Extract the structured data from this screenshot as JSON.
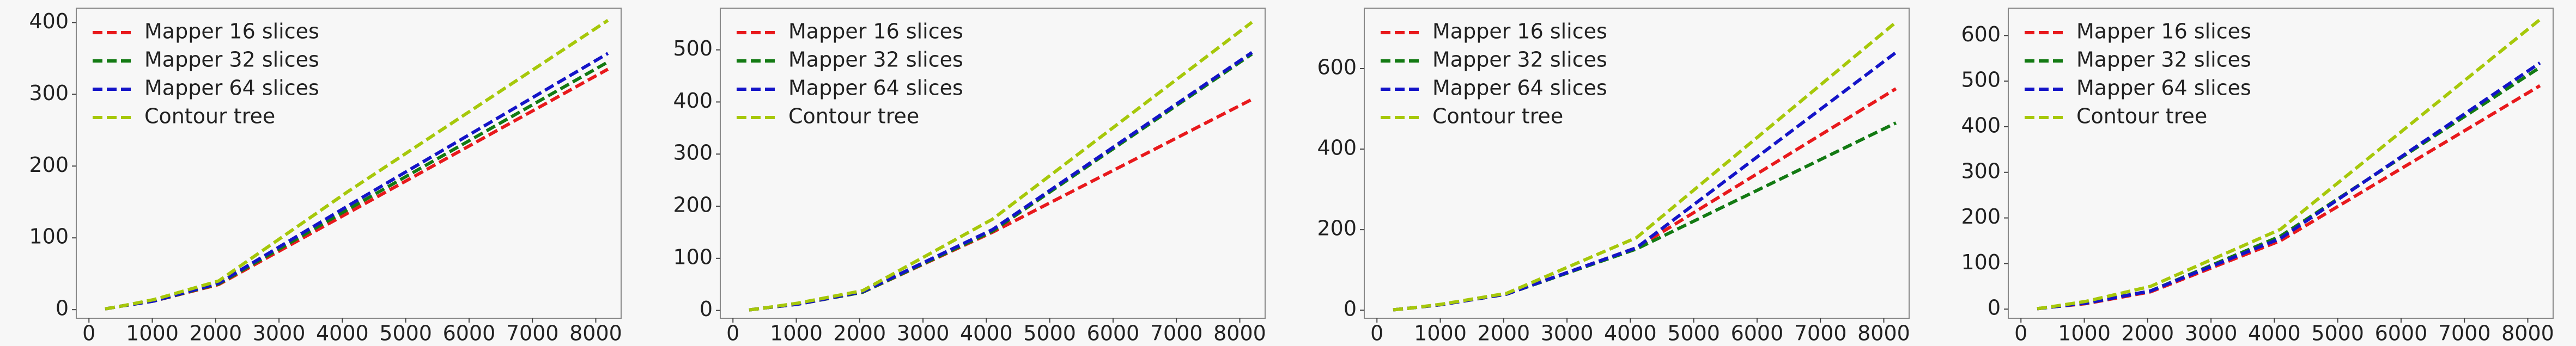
{
  "chart_data": [
    {
      "type": "line",
      "x": [
        256,
        512,
        1024,
        2048,
        4096,
        8192
      ],
      "series": [
        {
          "name": "Mapper 16 slices",
          "color": "#e8191c",
          "values": [
            1,
            5,
            12,
            35,
            135,
            335
          ]
        },
        {
          "name": "Mapper 32 slices",
          "color": "#137a13",
          "values": [
            1,
            5,
            12,
            36,
            140,
            345
          ]
        },
        {
          "name": "Mapper 64 slices",
          "color": "#1414c8",
          "values": [
            1,
            5,
            12,
            37,
            145,
            357
          ]
        },
        {
          "name": "Contour tree",
          "color": "#a6c80a",
          "values": [
            1,
            5,
            14,
            40,
            165,
            403
          ]
        }
      ],
      "xlim": [
        -200,
        8400
      ],
      "ylim": [
        -12,
        420
      ],
      "xticks": [
        0,
        1000,
        2000,
        3000,
        4000,
        5000,
        6000,
        7000,
        8000
      ],
      "yticks": [
        0,
        100,
        200,
        300,
        400
      ],
      "legend": "upper left"
    },
    {
      "type": "line",
      "x": [
        256,
        512,
        1024,
        2048,
        4096,
        8192
      ],
      "series": [
        {
          "name": "Mapper 16 slices",
          "color": "#e8191c",
          "values": [
            1,
            5,
            12,
            35,
            150,
            405
          ]
        },
        {
          "name": "Mapper 32 slices",
          "color": "#137a13",
          "values": [
            1,
            5,
            12,
            35,
            152,
            492
          ]
        },
        {
          "name": "Mapper 64 slices",
          "color": "#1414c8",
          "values": [
            1,
            5,
            12,
            36,
            155,
            495
          ]
        },
        {
          "name": "Contour tree",
          "color": "#a6c80a",
          "values": [
            1,
            5,
            14,
            38,
            175,
            553
          ]
        }
      ],
      "xlim": [
        -200,
        8400
      ],
      "ylim": [
        -15,
        580
      ],
      "xticks": [
        0,
        1000,
        2000,
        3000,
        4000,
        5000,
        6000,
        7000,
        8000
      ],
      "yticks": [
        0,
        100,
        200,
        300,
        400,
        500
      ],
      "legend": "upper left"
    },
    {
      "type": "line",
      "x": [
        256,
        512,
        1024,
        2048,
        4096,
        8192
      ],
      "series": [
        {
          "name": "Mapper 16 slices",
          "color": "#e8191c",
          "values": [
            1,
            5,
            14,
            40,
            155,
            550
          ]
        },
        {
          "name": "Mapper 32 slices",
          "color": "#137a13",
          "values": [
            1,
            5,
            14,
            40,
            152,
            465
          ]
        },
        {
          "name": "Mapper 64 slices",
          "color": "#1414c8",
          "values": [
            1,
            5,
            14,
            40,
            155,
            640
          ]
        },
        {
          "name": "Contour tree",
          "color": "#a6c80a",
          "values": [
            1,
            5,
            15,
            42,
            180,
            715
          ]
        }
      ],
      "xlim": [
        -200,
        8400
      ],
      "ylim": [
        -20,
        750
      ],
      "xticks": [
        0,
        1000,
        2000,
        3000,
        4000,
        5000,
        6000,
        7000,
        8000
      ],
      "yticks": [
        0,
        200,
        400,
        600
      ],
      "legend": "upper left"
    },
    {
      "type": "line",
      "x": [
        256,
        512,
        1024,
        2048,
        4096,
        8192
      ],
      "series": [
        {
          "name": "Mapper 16 slices",
          "color": "#e8191c",
          "values": [
            1,
            5,
            12,
            38,
            150,
            490
          ]
        },
        {
          "name": "Mapper 32 slices",
          "color": "#137a13",
          "values": [
            1,
            5,
            13,
            40,
            160,
            530
          ]
        },
        {
          "name": "Mapper 64 slices",
          "color": "#1414c8",
          "values": [
            1,
            5,
            13,
            40,
            155,
            540
          ]
        },
        {
          "name": "Contour tree",
          "color": "#a6c80a",
          "values": [
            1,
            6,
            17,
            50,
            175,
            635
          ]
        }
      ],
      "xlim": [
        -200,
        8400
      ],
      "ylim": [
        -20,
        660
      ],
      "xticks": [
        0,
        1000,
        2000,
        3000,
        4000,
        5000,
        6000,
        7000,
        8000
      ],
      "yticks": [
        0,
        100,
        200,
        300,
        400,
        500,
        600
      ],
      "legend": "upper left"
    }
  ]
}
